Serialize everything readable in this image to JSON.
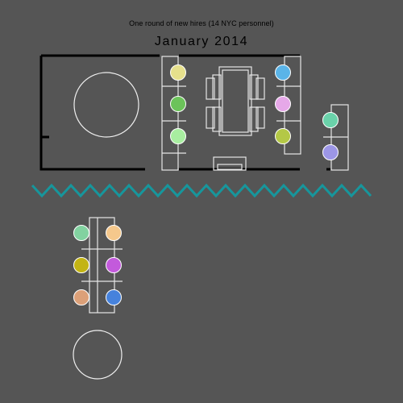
{
  "caption": "One round of new hires (14 NYC personnel)",
  "title": "January 2014",
  "colors": {
    "background": "#555555",
    "walls": "#000000",
    "furniture": "#e6e6e6",
    "divider": "#17969c"
  },
  "seats": [
    {
      "group": "main-left",
      "color": "#e6e08c"
    },
    {
      "group": "main-left",
      "color": "#6cc35a"
    },
    {
      "group": "main-left",
      "color": "#a8eea0"
    },
    {
      "group": "main-right",
      "color": "#5ab4e8"
    },
    {
      "group": "main-right",
      "color": "#e6a8e8"
    },
    {
      "group": "main-right",
      "color": "#b4c846"
    },
    {
      "group": "side",
      "color": "#6ad2aa"
    },
    {
      "group": "side",
      "color": "#9c96e6"
    },
    {
      "group": "lower",
      "color": "#82d2a0"
    },
    {
      "group": "lower",
      "color": "#f5c88c"
    },
    {
      "group": "lower",
      "color": "#c3b414"
    },
    {
      "group": "lower",
      "color": "#c35adc"
    },
    {
      "group": "lower",
      "color": "#dca078"
    },
    {
      "group": "lower",
      "color": "#4682dc"
    }
  ]
}
